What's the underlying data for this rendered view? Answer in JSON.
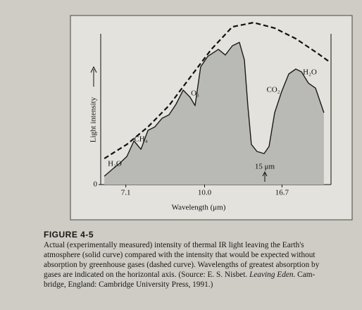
{
  "chart_data": {
    "type": "line",
    "xlabel": "Wavelength (μm)",
    "ylabel": "Light intensity",
    "xscale": "reciprocal",
    "xlim": [
      6.5,
      29
    ],
    "xticks": [
      7.1,
      {
        "value": 10,
        "label": "10.0"
      },
      16.7
    ],
    "ylim": [
      0,
      100
    ],
    "yticks": [
      0
    ],
    "series": [
      {
        "style": "solid",
        "color": "#1a1a1a",
        "fill": "#b9b9b6",
        "x": [
          6.58,
          6.77,
          6.94,
          7.13,
          7.32,
          7.52,
          7.73,
          7.95,
          8.19,
          8.44,
          8.71,
          9.0,
          9.3,
          9.53,
          9.8,
          10.17,
          10.77,
          11.2,
          11.68,
          12.2,
          12.6,
          12.89,
          13.2,
          13.73,
          14.46,
          15.01,
          15.7,
          16.65,
          17.73,
          18.96,
          20.07,
          21.66,
          23.52,
          26.21
        ],
        "values": [
          5.1,
          9.4,
          12.8,
          17.1,
          26.5,
          21.4,
          32.9,
          35,
          40.2,
          42.3,
          48.7,
          57.3,
          53,
          47.9,
          71.4,
          77.8,
          82,
          78.6,
          84.2,
          86.3,
          75.6,
          47.9,
          24.4,
          20.1,
          18.8,
          23.1,
          43.6,
          56.4,
          67.1,
          70.1,
          68.4,
          61.5,
          58.5,
          43.6
        ]
      },
      {
        "style": "dashed",
        "color": "#111111",
        "x": [
          6.58,
          7.13,
          7.73,
          8.44,
          9.3,
          10.36,
          11.68,
          13.4,
          15.7,
          18.96,
          23.93,
          28.4
        ],
        "values": [
          15.8,
          24.4,
          35,
          47.9,
          65,
          82,
          95.7,
          98.3,
          94.9,
          88.5,
          79.9,
          74.4
        ]
      }
    ],
    "annotations": [
      "H₂O",
      "CH₄",
      "O₃",
      "CO₂",
      "H₂O",
      "15 μm"
    ]
  },
  "caption": {
    "label": "FIGURE 4-5",
    "lines": [
      "Actual (experimentally measured) intensity of thermal IR light leaving the Earth's",
      "atmosphere (solid curve) compared with the intensity that would be expected without",
      "absorption by greenhouse gases (dashed curve). Wavelengths of greatest absorption by"
    ],
    "source_line": {
      "before": "gases are indicated on the horizontal axis. (Source: E. S. Nisbet. ",
      "italic": "Leaving Eden",
      "after": ". Cam-"
    },
    "last_line": "bridge, England: Cambridge University Press, 1991.)"
  }
}
